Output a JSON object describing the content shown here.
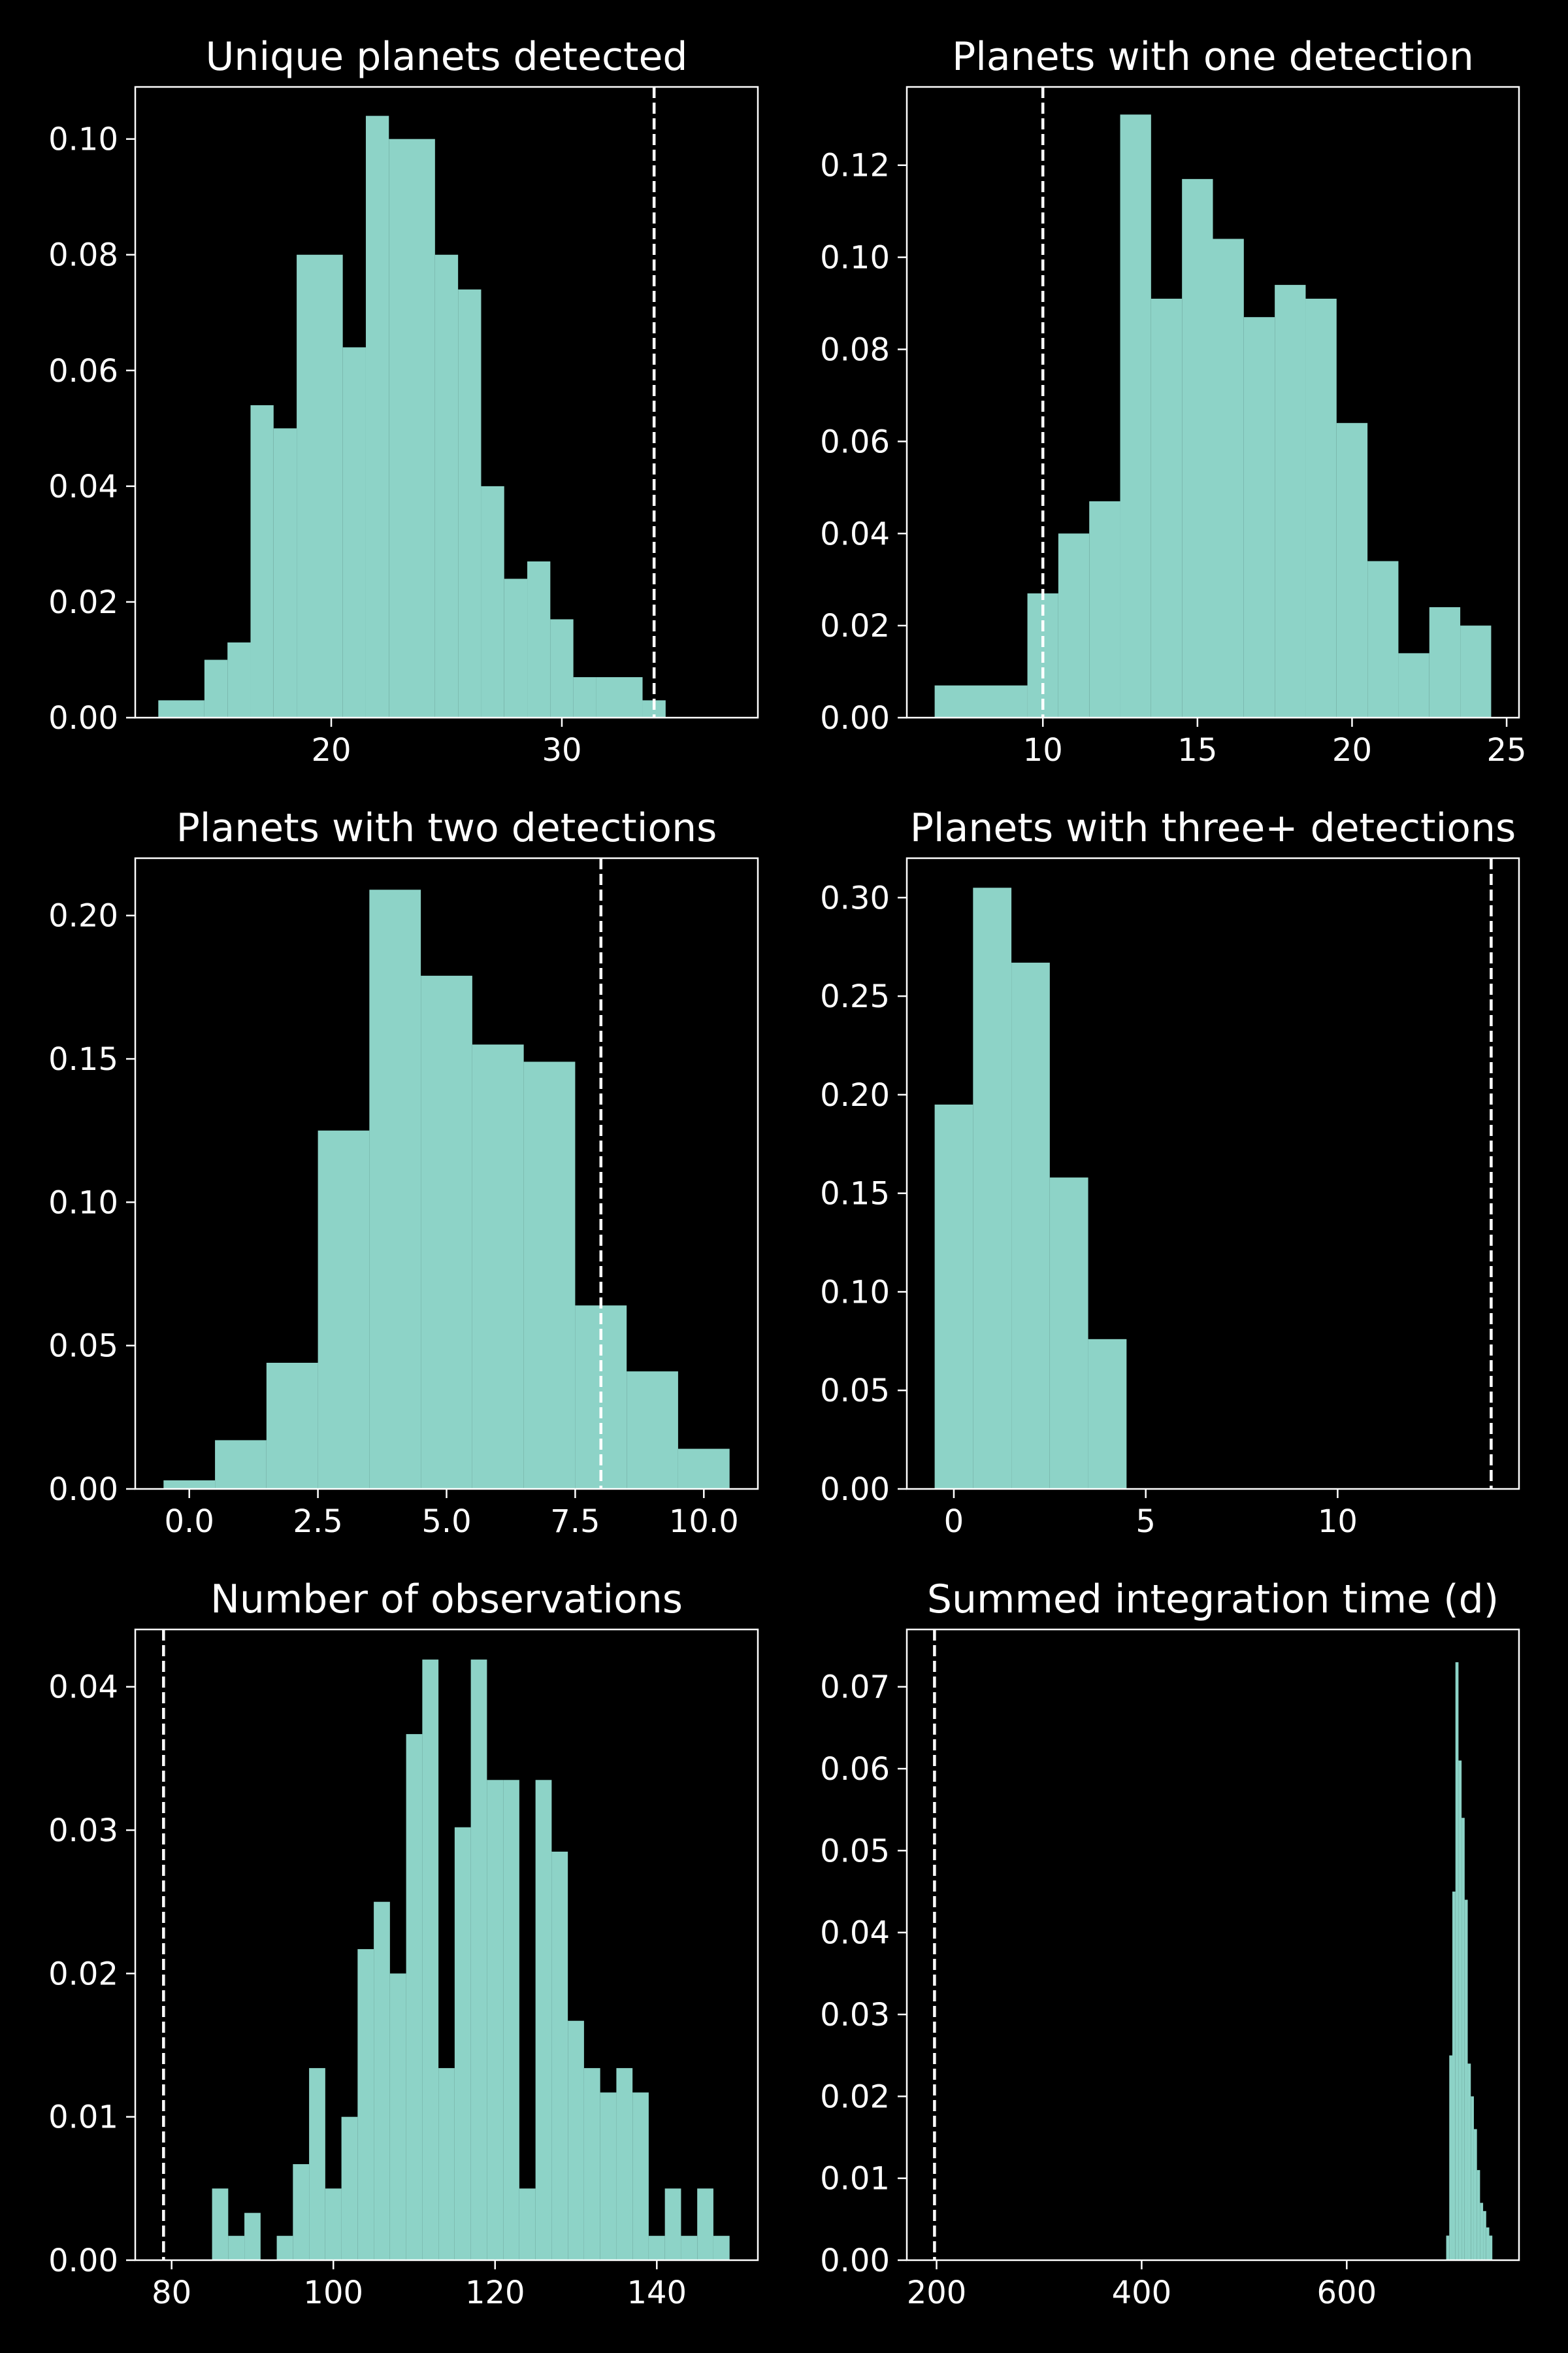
{
  "figure": {
    "background": "#000000",
    "bar_color": "#8dd3c7",
    "axis_color": "#ffffff",
    "reference_line_color": "#ffffff",
    "reference_line_style": "dashed"
  },
  "chart_data": [
    {
      "type": "bar",
      "title": "Unique planets detected",
      "xlim": [
        11.5,
        38.5
      ],
      "ylim": [
        0,
        0.109
      ],
      "xticks": [
        20,
        30
      ],
      "xtick_labels": [
        "20",
        "30"
      ],
      "yticks": [
        0,
        0.02,
        0.04,
        0.06,
        0.08,
        0.1
      ],
      "ytick_labels": [
        "0.00",
        "0.02",
        "0.04",
        "0.06",
        "0.08",
        "0.10"
      ],
      "bin_edges": [
        12.5,
        14.5,
        15.5,
        16.5,
        17.5,
        18.5,
        20.5,
        21.5,
        22.5,
        24.5,
        25.5,
        26.5,
        27.5,
        28.5,
        29.5,
        30.5,
        31.5,
        33.5,
        34.5
      ],
      "values": [
        0.003,
        0.01,
        0.013,
        0.054,
        0.05,
        0.08,
        0.064,
        0.104,
        0.1,
        0.08,
        0.074,
        0.04,
        0.024,
        0.027,
        0.017,
        0.007,
        0.007,
        0.003
      ],
      "reference_line": 34
    },
    {
      "type": "bar",
      "title": "Planets with one detection",
      "xlim": [
        5.6,
        25.4
      ],
      "ylim": [
        0,
        0.137
      ],
      "xticks": [
        10,
        15,
        20,
        25
      ],
      "xtick_labels": [
        "10",
        "15",
        "20",
        "25"
      ],
      "yticks": [
        0,
        0.02,
        0.04,
        0.06,
        0.08,
        0.1,
        0.12
      ],
      "ytick_labels": [
        "0.00",
        "0.02",
        "0.04",
        "0.06",
        "0.08",
        "0.10",
        "0.12"
      ],
      "bin_edges": [
        6.5,
        9.5,
        10.5,
        11.5,
        12.5,
        13.5,
        14.5,
        15.5,
        16.5,
        17.5,
        18.5,
        19.5,
        20.5,
        21.5,
        22.5,
        23.5,
        24.5
      ],
      "values": [
        0.007,
        0.027,
        0.04,
        0.047,
        0.131,
        0.091,
        0.117,
        0.104,
        0.087,
        0.094,
        0.091,
        0.064,
        0.034,
        0.014,
        0.024,
        0.02
      ],
      "reference_line": 10
    },
    {
      "type": "bar",
      "title": "Planets with two detections",
      "xlim": [
        -1.05,
        11.05
      ],
      "ylim": [
        0,
        0.22
      ],
      "xticks": [
        0,
        2.5,
        5,
        7.5,
        10
      ],
      "xtick_labels": [
        "0.0",
        "2.5",
        "5.0",
        "7.5",
        "10.0"
      ],
      "yticks": [
        0,
        0.05,
        0.1,
        0.15,
        0.2
      ],
      "ytick_labels": [
        "0.00",
        "0.05",
        "0.10",
        "0.15",
        "0.20"
      ],
      "bin_edges": [
        -0.5,
        0.5,
        1.5,
        2.5,
        3.5,
        4.5,
        5.5,
        6.5,
        7.5,
        8.5,
        9.5,
        10.5
      ],
      "values": [
        0.003,
        0.017,
        0.044,
        0.125,
        0.209,
        0.179,
        0.155,
        0.149,
        0.064,
        0.041,
        0.014
      ],
      "reference_line": 8
    },
    {
      "type": "bar",
      "title": "Planets with three+ detections",
      "xlim": [
        -1.225,
        14.725
      ],
      "ylim": [
        0,
        0.32
      ],
      "xticks": [
        0,
        5,
        10
      ],
      "xtick_labels": [
        "0",
        "5",
        "10"
      ],
      "yticks": [
        0,
        0.05,
        0.1,
        0.15,
        0.2,
        0.25,
        0.3
      ],
      "ytick_labels": [
        "0.00",
        "0.05",
        "0.10",
        "0.15",
        "0.20",
        "0.25",
        "0.30"
      ],
      "bin_edges": [
        -0.5,
        0.5,
        1.5,
        2.5,
        3.5,
        4.5
      ],
      "values": [
        0.195,
        0.305,
        0.267,
        0.158,
        0.076
      ],
      "reference_line": 14
    },
    {
      "type": "bar",
      "title": "Number of observations",
      "xlim": [
        75.5,
        152.5
      ],
      "ylim": [
        0,
        0.044
      ],
      "xticks": [
        80,
        100,
        120,
        140
      ],
      "xtick_labels": [
        "80",
        "100",
        "120",
        "140"
      ],
      "yticks": [
        0,
        0.01,
        0.02,
        0.03,
        0.04
      ],
      "ytick_labels": [
        "0.00",
        "0.01",
        "0.02",
        "0.03",
        "0.04"
      ],
      "bin_edges": [
        85,
        87,
        89,
        91,
        93,
        95,
        97,
        99,
        101,
        103,
        105,
        107,
        109,
        111,
        113,
        115,
        117,
        119,
        121,
        123,
        125,
        127,
        129,
        131,
        133,
        135,
        137,
        139,
        141,
        143,
        145,
        147,
        149
      ],
      "values": [
        0.005,
        0.0017,
        0.0033,
        0.0,
        0.0017,
        0.0067,
        0.0134,
        0.005,
        0.01,
        0.0217,
        0.025,
        0.02,
        0.0367,
        0.0419,
        0.0134,
        0.0302,
        0.0419,
        0.0335,
        0.0335,
        0.005,
        0.0335,
        0.0285,
        0.0167,
        0.0134,
        0.0117,
        0.0134,
        0.0117,
        0.0017,
        0.005,
        0.0017,
        0.005,
        0.0017
      ],
      "reference_line": 79
    },
    {
      "type": "bar",
      "title": "Summed integration time (d)",
      "xlim": [
        171,
        768
      ],
      "ylim": [
        0,
        0.077
      ],
      "xticks": [
        200,
        400,
        600
      ],
      "xtick_labels": [
        "200",
        "400",
        "600"
      ],
      "yticks": [
        0,
        0.01,
        0.02,
        0.03,
        0.04,
        0.05,
        0.06,
        0.07
      ],
      "ytick_labels": [
        "0.00",
        "0.01",
        "0.02",
        "0.03",
        "0.04",
        "0.05",
        "0.06",
        "0.07"
      ],
      "bin_edges": [
        697,
        700,
        703,
        706,
        709,
        712,
        715,
        718,
        721,
        724,
        727,
        730,
        733,
        736,
        739,
        742
      ],
      "values": [
        0.003,
        0.025,
        0.045,
        0.073,
        0.061,
        0.054,
        0.044,
        0.024,
        0.02,
        0.016,
        0.011,
        0.007,
        0.006,
        0.004,
        0.003
      ],
      "reference_line": 198
    }
  ]
}
